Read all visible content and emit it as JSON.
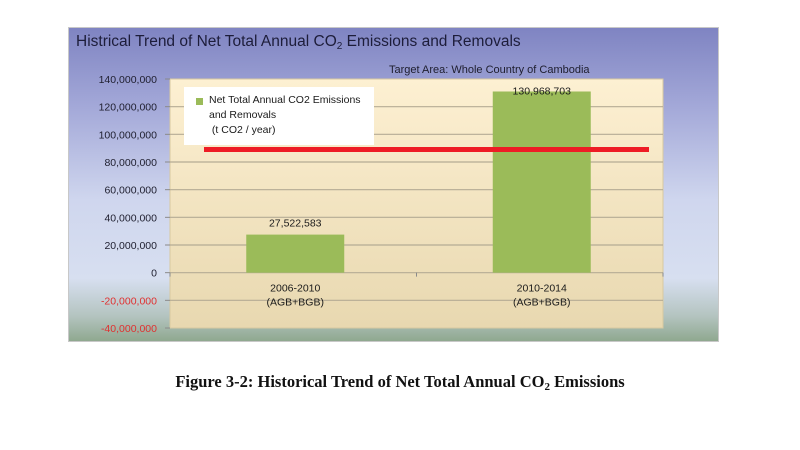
{
  "chart_data": {
    "type": "bar",
    "title": "Histrical Trend of  Net Total Annual CO2 Emissions and Removals",
    "title_parts": {
      "before": "Histrical Trend of  Net Total Annual CO",
      "sub": "2",
      "after": " Emissions and Removals"
    },
    "subtitle": "Target Area: Whole Country of  Cambodia",
    "categories": [
      {
        "line1": "2006-2010",
        "line2": "(AGB+BGB)"
      },
      {
        "line1": "2010-2014",
        "line2": "(AGB+BGB)"
      }
    ],
    "series": [
      {
        "name": "Net Total Annual CO2 Emissions and Removals (t CO2 / year)",
        "legend_lines": [
          "Net Total Annual CO2 Emissions",
          "and Removals",
          " (t CO2 / year)"
        ],
        "color": "#9bbb59",
        "values": [
          27522583,
          130968703
        ],
        "data_labels": [
          "27,522,583",
          "130,968,703"
        ]
      }
    ],
    "reference_line": {
      "value": 89000000,
      "color": "#ee1c25"
    },
    "ylim": [
      -40000000,
      140000000
    ],
    "yticks": [
      140000000,
      120000000,
      100000000,
      80000000,
      60000000,
      40000000,
      20000000,
      0,
      -20000000,
      -40000000
    ],
    "ytick_labels": [
      "140,000,000",
      "120,000,000",
      "100,000,000",
      "80,000,000",
      "60,000,000",
      "40,000,000",
      "20,000,000",
      "0",
      "-20,000,000",
      "-40,000,000"
    ],
    "negative_tick_color": "#e03030",
    "grid": true,
    "legend_position": "top-left",
    "xlabel": "",
    "ylabel": ""
  },
  "caption": {
    "before": "Figure 3-2: Historical Trend of Net Total Annual CO",
    "sub": "2",
    "after": " Emissions"
  }
}
